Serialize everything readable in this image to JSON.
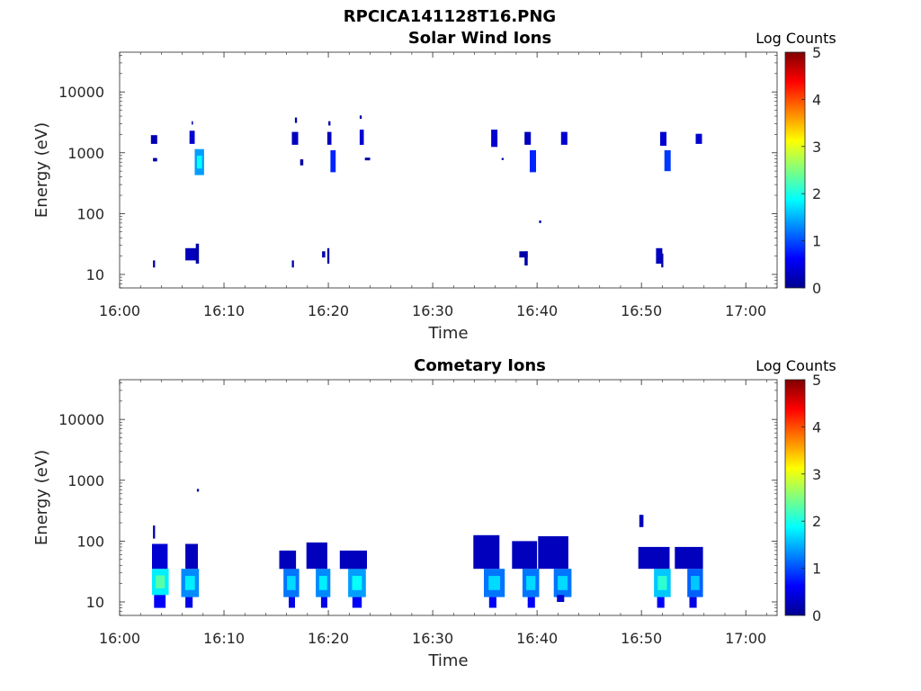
{
  "figure_title": "RPCICA141128T16.PNG",
  "chart_data": [
    {
      "type": "heatmap",
      "title": "Solar Wind Ions",
      "xlabel": "Time",
      "ylabel": "Energy (eV)",
      "x_ticks": [
        "16:00",
        "16:10",
        "16:20",
        "16:30",
        "16:40",
        "16:50",
        "17:00"
      ],
      "x_range_min": [
        0,
        63
      ],
      "y_scale": "log",
      "y_ticks": [
        "10",
        "100",
        "1000",
        "10000"
      ],
      "y_range": [
        6,
        45000
      ],
      "colorbar": {
        "label": "Log Counts",
        "ticks": [
          "0",
          "1",
          "2",
          "3",
          "4",
          "5"
        ],
        "range": [
          0,
          5
        ],
        "colormap": "jet"
      },
      "blobs": [
        {
          "t": [
            3.0,
            3.6
          ],
          "e": [
            1400,
            1950
          ],
          "v": 0.25
        },
        {
          "t": [
            3.2,
            3.6
          ],
          "e": [
            720,
            820
          ],
          "v": 0.2
        },
        {
          "t": [
            3.2,
            3.4
          ],
          "e": [
            13,
            17
          ],
          "v": 0.2
        },
        {
          "t": [
            6.7,
            7.2
          ],
          "e": [
            1400,
            2300
          ],
          "v": 0.4
        },
        {
          "t": [
            6.9,
            7.0
          ],
          "e": [
            2900,
            3300
          ],
          "v": 0.2
        },
        {
          "t": [
            7.2,
            8.1
          ],
          "e": [
            430,
            1150
          ],
          "v": 1.4
        },
        {
          "t": [
            6.3,
            7.4
          ],
          "e": [
            17,
            27
          ],
          "v": 0.3
        },
        {
          "t": [
            7.3,
            7.6
          ],
          "e": [
            15,
            32
          ],
          "v": 0.2
        },
        {
          "t": [
            16.5,
            17.1
          ],
          "e": [
            1350,
            2200
          ],
          "v": 0.3
        },
        {
          "t": [
            16.8,
            17.0
          ],
          "e": [
            3100,
            3800
          ],
          "v": 0.2
        },
        {
          "t": [
            17.3,
            17.6
          ],
          "e": [
            620,
            780
          ],
          "v": 0.2
        },
        {
          "t": [
            16.5,
            16.7
          ],
          "e": [
            13,
            17
          ],
          "v": 0.2
        },
        {
          "t": [
            19.9,
            20.3
          ],
          "e": [
            1350,
            2200
          ],
          "v": 0.3
        },
        {
          "t": [
            20.0,
            20.2
          ],
          "e": [
            2800,
            3300
          ],
          "v": 0.2
        },
        {
          "t": [
            20.2,
            20.7
          ],
          "e": [
            480,
            1100
          ],
          "v": 0.8
        },
        {
          "t": [
            19.4,
            19.7
          ],
          "e": [
            19,
            24
          ],
          "v": 0.2
        },
        {
          "t": [
            19.9,
            20.1
          ],
          "e": [
            15,
            27
          ],
          "v": 0.2
        },
        {
          "t": [
            23.0,
            23.4
          ],
          "e": [
            1350,
            2400
          ],
          "v": 0.4
        },
        {
          "t": [
            23.0,
            23.2
          ],
          "e": [
            3600,
            4100
          ],
          "v": 0.2
        },
        {
          "t": [
            23.5,
            24.0
          ],
          "e": [
            750,
            830
          ],
          "v": 0.2
        },
        {
          "t": [
            35.6,
            36.2
          ],
          "e": [
            1250,
            2400
          ],
          "v": 0.4
        },
        {
          "t": [
            36.6,
            36.8
          ],
          "e": [
            760,
            820
          ],
          "v": 0.2
        },
        {
          "t": [
            38.8,
            39.4
          ],
          "e": [
            1350,
            2200
          ],
          "v": 0.3
        },
        {
          "t": [
            39.3,
            39.9
          ],
          "e": [
            480,
            1100
          ],
          "v": 0.8
        },
        {
          "t": [
            40.2,
            40.4
          ],
          "e": [
            70,
            77
          ],
          "v": 0.2
        },
        {
          "t": [
            38.3,
            39.1
          ],
          "e": [
            19,
            24
          ],
          "v": 0.2
        },
        {
          "t": [
            38.8,
            39.1
          ],
          "e": [
            14,
            24
          ],
          "v": 0.2
        },
        {
          "t": [
            42.3,
            42.9
          ],
          "e": [
            1350,
            2200
          ],
          "v": 0.4
        },
        {
          "t": [
            51.8,
            52.4
          ],
          "e": [
            1300,
            2200
          ],
          "v": 0.4
        },
        {
          "t": [
            52.2,
            52.8
          ],
          "e": [
            500,
            1100
          ],
          "v": 0.9
        },
        {
          "t": [
            51.4,
            52.0
          ],
          "e": [
            15,
            27
          ],
          "v": 0.3
        },
        {
          "t": [
            51.9,
            52.1
          ],
          "e": [
            13,
            22
          ],
          "v": 0.2
        },
        {
          "t": [
            55.2,
            55.8
          ],
          "e": [
            1400,
            2050
          ],
          "v": 0.4
        }
      ]
    },
    {
      "type": "heatmap",
      "title": "Cometary Ions",
      "xlabel": "Time",
      "ylabel": "Energy (eV)",
      "x_ticks": [
        "16:00",
        "16:10",
        "16:20",
        "16:30",
        "16:40",
        "16:50",
        "17:00"
      ],
      "x_range_min": [
        0,
        63
      ],
      "y_scale": "log",
      "y_ticks": [
        "10",
        "100",
        "1000",
        "10000"
      ],
      "y_range": [
        6,
        45000
      ],
      "colorbar": {
        "label": "Log Counts",
        "ticks": [
          "0",
          "1",
          "2",
          "3",
          "4",
          "5"
        ],
        "range": [
          0,
          5
        ],
        "colormap": "jet"
      },
      "blobs": [
        {
          "t": [
            3.1,
            4.7
          ],
          "e": [
            13,
            35
          ],
          "v": 1.8
        },
        {
          "t": [
            3.1,
            4.6
          ],
          "e": [
            35,
            90
          ],
          "v": 0.4
        },
        {
          "t": [
            3.2,
            3.4
          ],
          "e": [
            110,
            180
          ],
          "v": 0.2
        },
        {
          "t": [
            3.3,
            4.4
          ],
          "e": [
            8,
            13
          ],
          "v": 0.6
        },
        {
          "t": [
            5.9,
            7.6
          ],
          "e": [
            12,
            35
          ],
          "v": 1.3
        },
        {
          "t": [
            6.3,
            7.5
          ],
          "e": [
            35,
            90
          ],
          "v": 0.3
        },
        {
          "t": [
            6.3,
            7.0
          ],
          "e": [
            8,
            12
          ],
          "v": 0.5
        },
        {
          "t": [
            7.4,
            7.6
          ],
          "e": [
            650,
            720
          ],
          "v": 0.2
        },
        {
          "t": [
            15.7,
            17.2
          ],
          "e": [
            12,
            35
          ],
          "v": 1.2
        },
        {
          "t": [
            15.3,
            16.9
          ],
          "e": [
            35,
            70
          ],
          "v": 0.3
        },
        {
          "t": [
            16.2,
            16.8
          ],
          "e": [
            8,
            12
          ],
          "v": 0.5
        },
        {
          "t": [
            18.8,
            20.2
          ],
          "e": [
            12,
            35
          ],
          "v": 1.3
        },
        {
          "t": [
            17.9,
            19.9
          ],
          "e": [
            35,
            95
          ],
          "v": 0.3
        },
        {
          "t": [
            19.3,
            19.9
          ],
          "e": [
            8,
            12
          ],
          "v": 0.5
        },
        {
          "t": [
            21.9,
            23.6
          ],
          "e": [
            12,
            35
          ],
          "v": 1.4
        },
        {
          "t": [
            21.1,
            23.7
          ],
          "e": [
            35,
            70
          ],
          "v": 0.3
        },
        {
          "t": [
            22.3,
            23.2
          ],
          "e": [
            8,
            12
          ],
          "v": 0.6
        },
        {
          "t": [
            34.9,
            36.9
          ],
          "e": [
            12,
            35
          ],
          "v": 1.2
        },
        {
          "t": [
            33.9,
            36.4
          ],
          "e": [
            35,
            125
          ],
          "v": 0.3
        },
        {
          "t": [
            35.4,
            36.1
          ],
          "e": [
            8,
            12
          ],
          "v": 0.6
        },
        {
          "t": [
            38.6,
            40.2
          ],
          "e": [
            12,
            35
          ],
          "v": 1.2
        },
        {
          "t": [
            37.6,
            40.0
          ],
          "e": [
            35,
            100
          ],
          "v": 0.3
        },
        {
          "t": [
            39.1,
            39.8
          ],
          "e": [
            8,
            12
          ],
          "v": 0.6
        },
        {
          "t": [
            41.6,
            43.3
          ],
          "e": [
            12,
            35
          ],
          "v": 1.2
        },
        {
          "t": [
            40.1,
            43.0
          ],
          "e": [
            35,
            120
          ],
          "v": 0.3
        },
        {
          "t": [
            41.9,
            42.6
          ],
          "e": [
            10,
            13
          ],
          "v": 0.4
        },
        {
          "t": [
            51.2,
            52.8
          ],
          "e": [
            12,
            35
          ],
          "v": 1.6
        },
        {
          "t": [
            49.7,
            52.7
          ],
          "e": [
            35,
            80
          ],
          "v": 0.3
        },
        {
          "t": [
            49.8,
            50.2
          ],
          "e": [
            170,
            270
          ],
          "v": 0.3
        },
        {
          "t": [
            51.5,
            52.2
          ],
          "e": [
            8,
            12
          ],
          "v": 0.6
        },
        {
          "t": [
            54.4,
            55.9
          ],
          "e": [
            12,
            35
          ],
          "v": 1.1
        },
        {
          "t": [
            53.2,
            55.9
          ],
          "e": [
            35,
            80
          ],
          "v": 0.3
        },
        {
          "t": [
            54.6,
            55.3
          ],
          "e": [
            8,
            12
          ],
          "v": 0.5
        }
      ]
    }
  ]
}
